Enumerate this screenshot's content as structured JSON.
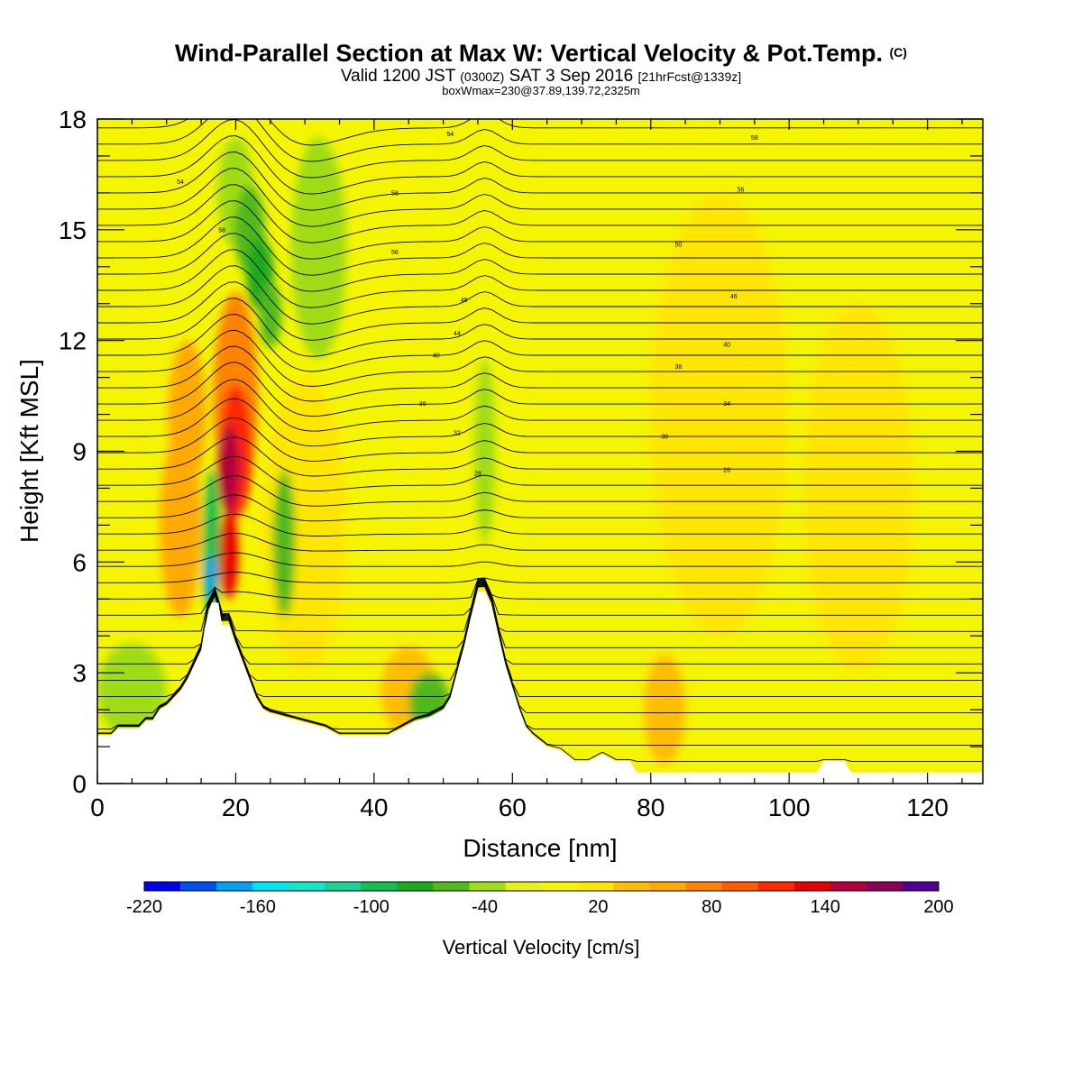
{
  "header": {
    "title_main": "Wind-Parallel Section at Max W: Vertical Velocity & Pot.Temp.",
    "title_mark": "(C)",
    "valid_a": "Valid 1200 JST",
    "valid_zone": "(0300Z)",
    "valid_b": "SAT 3 Sep 2016",
    "valid_fcst": "[21hrFcst@1339z]",
    "box_info": "boxWmax=230@37.89,139.72,2325m"
  },
  "chart_data": {
    "type": "heatmap",
    "xlabel": "Distance [nm]",
    "ylabel": "Height [Kft MSL]",
    "xlim": [
      0,
      128
    ],
    "ylim": [
      0,
      18
    ],
    "x_ticks": [
      0,
      20,
      40,
      60,
      80,
      100,
      120
    ],
    "y_ticks": [
      0,
      3,
      6,
      9,
      12,
      15,
      18
    ],
    "field": "Vertical Velocity",
    "contours": "Potential Temperature",
    "colorbar": {
      "label": "Vertical Velocity [cm/s]",
      "tick_labels": [
        "-220",
        "-160",
        "-100",
        "-40",
        "20",
        "80",
        "140",
        "200"
      ],
      "tick_values": [
        -220,
        -160,
        -100,
        -40,
        20,
        80,
        140,
        200
      ],
      "levels": [
        -220,
        -200,
        -180,
        -160,
        -140,
        -120,
        -100,
        -80,
        -60,
        -40,
        -20,
        0,
        20,
        40,
        60,
        80,
        100,
        120,
        140,
        160,
        180,
        200
      ],
      "colors": [
        "#0000f0",
        "#0050f0",
        "#00a0f0",
        "#00e6f0",
        "#14e6c8",
        "#1ed296",
        "#14be50",
        "#1eaa1e",
        "#50b91e",
        "#a0dc14",
        "#e6f01e",
        "#f5f500",
        "#ffe600",
        "#ffbe00",
        "#ffaa00",
        "#ff8200",
        "#ff5a00",
        "#ff2800",
        "#e60000",
        "#b4003c",
        "#8c005a",
        "#500096"
      ]
    },
    "terrain_kft": [
      [
        0,
        1.3
      ],
      [
        2,
        1.3
      ],
      [
        3,
        1.5
      ],
      [
        6,
        1.5
      ],
      [
        7,
        1.7
      ],
      [
        8,
        1.7
      ],
      [
        9,
        2.0
      ],
      [
        10,
        2.1
      ],
      [
        11,
        2.3
      ],
      [
        12,
        2.5
      ],
      [
        13,
        2.8
      ],
      [
        14,
        3.2
      ],
      [
        15,
        3.6
      ],
      [
        15.5,
        4.2
      ],
      [
        16,
        4.6
      ],
      [
        16.5,
        4.9
      ],
      [
        17.5,
        4.9
      ],
      [
        18,
        4.3
      ],
      [
        19,
        4.3
      ],
      [
        20,
        3.8
      ],
      [
        21,
        3.3
      ],
      [
        22,
        2.8
      ],
      [
        23,
        2.3
      ],
      [
        24,
        2.0
      ],
      [
        25,
        1.9
      ],
      [
        27,
        1.8
      ],
      [
        29,
        1.7
      ],
      [
        31,
        1.6
      ],
      [
        33,
        1.5
      ],
      [
        35,
        1.3
      ],
      [
        37,
        1.3
      ],
      [
        39,
        1.3
      ],
      [
        42,
        1.3
      ],
      [
        44,
        1.5
      ],
      [
        46,
        1.7
      ],
      [
        48,
        1.8
      ],
      [
        50,
        2.0
      ],
      [
        51,
        2.3
      ],
      [
        52,
        3.0
      ],
      [
        53,
        3.7
      ],
      [
        54,
        4.5
      ],
      [
        55,
        5.2
      ],
      [
        56,
        5.2
      ],
      [
        57,
        4.8
      ],
      [
        58,
        4.0
      ],
      [
        59,
        3.2
      ],
      [
        60,
        2.6
      ],
      [
        61,
        2.0
      ],
      [
        62,
        1.5
      ],
      [
        63,
        1.3
      ],
      [
        65,
        1.0
      ],
      [
        67,
        0.9
      ],
      [
        69,
        0.6
      ],
      [
        71,
        0.6
      ],
      [
        73,
        0.8
      ],
      [
        75,
        0.6
      ],
      [
        77,
        0.6
      ],
      [
        78,
        0.3
      ],
      [
        80,
        0.3
      ],
      [
        104,
        0.3
      ],
      [
        105,
        0.6
      ],
      [
        108,
        0.6
      ],
      [
        109,
        0.3
      ],
      [
        128,
        0.3
      ]
    ],
    "contour_labels": [
      "54",
      "58",
      "54",
      "58",
      "56",
      "58",
      "56",
      "50",
      "48",
      "46",
      "44",
      "40",
      "40",
      "38",
      "36",
      "34",
      "32",
      "30",
      "28",
      "26"
    ]
  }
}
